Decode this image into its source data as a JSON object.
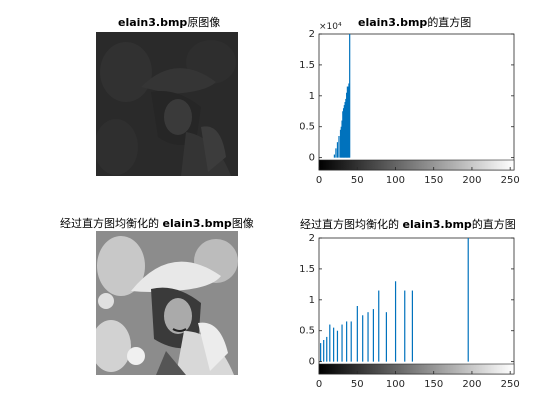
{
  "panels": {
    "original_image": {
      "title_bold": "elain3.bmp",
      "title_rest": "原图像"
    },
    "original_hist": {
      "title_bold": "elain3.bmp",
      "title_rest": "的直方图",
      "exponent": "×10⁴"
    },
    "equalized_image": {
      "title_pre": "经过直方图均衡化的",
      "title_bold": "elain3.bmp",
      "title_rest": "图像"
    },
    "equalized_hist": {
      "title_pre": "经过直方图均衡化的",
      "title_bold": "elain3.bmp",
      "title_rest": "的直方图"
    }
  },
  "chart_data": [
    {
      "type": "bar",
      "title": "elain3.bmp的直方图",
      "x": [
        20,
        22,
        24,
        26,
        28,
        29,
        30,
        31,
        32,
        33,
        34,
        35,
        36,
        37,
        38,
        39,
        40
      ],
      "values": [
        0.05,
        0.15,
        0.25,
        0.35,
        0.45,
        0.5,
        0.6,
        0.75,
        0.8,
        0.85,
        0.9,
        0.95,
        1.05,
        1.15,
        1.15,
        1.2,
        2.05
      ],
      "xlim": [
        0,
        255
      ],
      "ylim": [
        -0.2,
        2.0
      ],
      "xticks": [
        0,
        50,
        100,
        150,
        200,
        250
      ],
      "yticks": [
        0,
        0.5,
        1,
        1.5,
        2
      ],
      "ytick_labels": [
        "0",
        "0.5",
        "1",
        "1.5",
        "2"
      ],
      "y_multiplier": "×10⁴",
      "colorbar": "grayscale 0-255"
    },
    {
      "type": "bar",
      "title": "经过直方图均衡化的elain3.bmp的直方图",
      "x": [
        2,
        6,
        10,
        14,
        19,
        24,
        30,
        36,
        42,
        50,
        57,
        64,
        71,
        78,
        88,
        100,
        112,
        122,
        195
      ],
      "values": [
        0.3,
        0.35,
        0.4,
        0.6,
        0.55,
        0.5,
        0.6,
        0.65,
        0.65,
        0.9,
        0.75,
        0.8,
        0.85,
        1.15,
        0.8,
        1.3,
        1.15,
        1.15,
        2.05
      ],
      "xlim": [
        0,
        255
      ],
      "ylim": [
        -0.2,
        2.0
      ],
      "xticks": [
        0,
        50,
        100,
        150,
        200,
        250
      ],
      "yticks": [
        0,
        0.5,
        1,
        1.5,
        2
      ],
      "ytick_labels": [
        "0",
        "0.5",
        "1",
        "1.5",
        "2"
      ],
      "y_multiplier": "×10⁴",
      "colorbar": "grayscale 0-255"
    }
  ],
  "colors": {
    "bar": "#0072bd",
    "axis": "#262626"
  }
}
